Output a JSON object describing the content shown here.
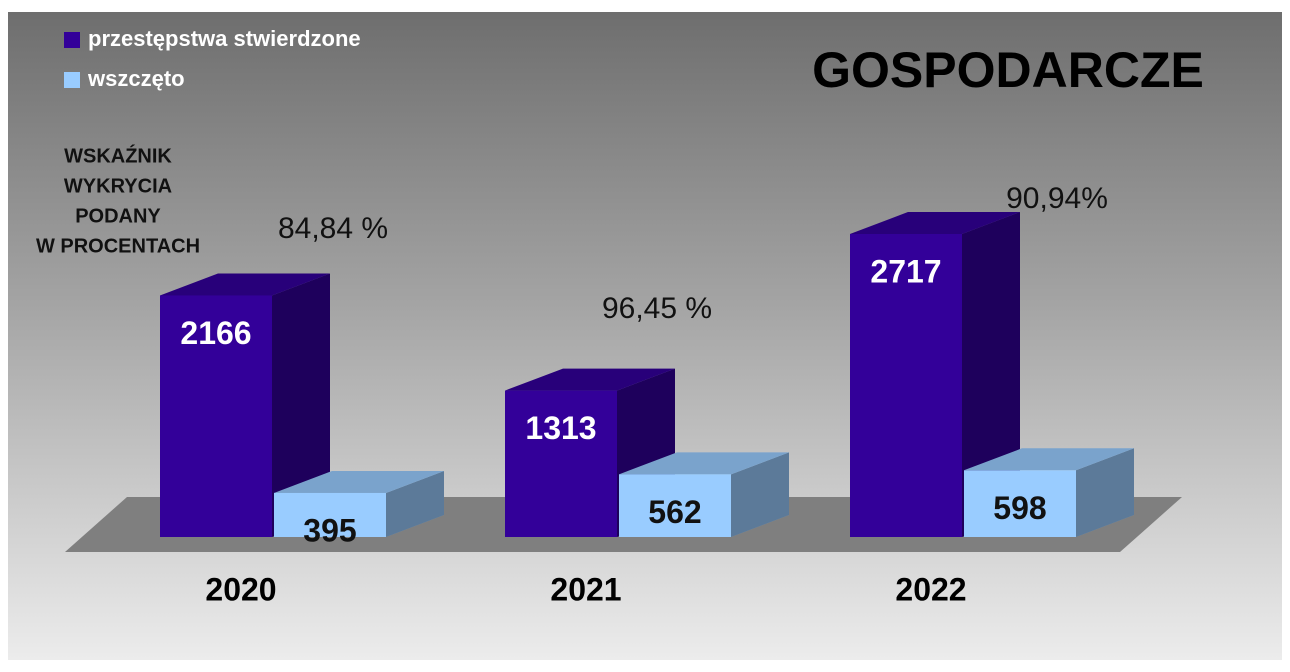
{
  "chart_data": {
    "type": "bar3d",
    "title": "GOSPODARCZE",
    "note_lines": [
      "WSKAŹNIK",
      "WYKRYCIA",
      "PODANY",
      "W PROCENTACH"
    ],
    "annotations": [
      "84,84 %",
      "96,45 %",
      "90,94%"
    ],
    "categories": [
      "2020",
      "2021",
      "2022"
    ],
    "series": [
      {
        "name": "przestępstwa stwierdzone",
        "color": "#330099",
        "values": [
          2166,
          1313,
          2717
        ]
      },
      {
        "name": "wszczęto",
        "color": "#99ccff",
        "values": [
          395,
          562,
          598
        ]
      }
    ]
  }
}
